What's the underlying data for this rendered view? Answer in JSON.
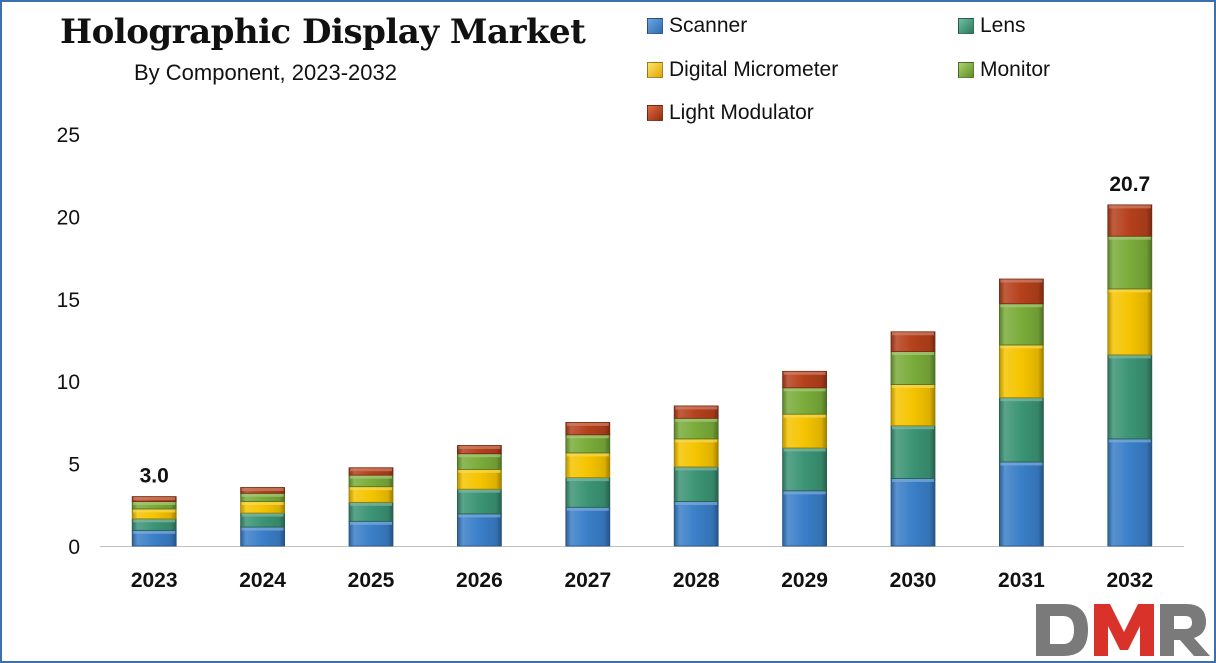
{
  "title": "Holographic Display Market",
  "subtitle": "By Component, 2023-2032",
  "legend": [
    {
      "label": "Scanner",
      "color": "#3a7fc8"
    },
    {
      "label": "Lens",
      "color": "#3c9475"
    },
    {
      "label": "Digital Micrometer",
      "color": "#f5c400"
    },
    {
      "label": "Monitor",
      "color": "#7aac3a"
    },
    {
      "label": "Light Modulator",
      "color": "#b5401c"
    }
  ],
  "logo": {
    "text": "DMR",
    "colors": [
      "#7a7a7a",
      "#d8322b",
      "#7a7a7a"
    ]
  },
  "chart_data": {
    "type": "bar",
    "stacked": true,
    "categories": [
      "2023",
      "2024",
      "2025",
      "2026",
      "2027",
      "2028",
      "2029",
      "2030",
      "2031",
      "2032"
    ],
    "series": [
      {
        "name": "Scanner",
        "color": "#3a7fc8",
        "values": [
          0.95,
          1.15,
          1.5,
          1.95,
          2.35,
          2.7,
          3.35,
          4.1,
          5.1,
          6.5
        ]
      },
      {
        "name": "Lens",
        "color": "#3c9475",
        "values": [
          0.7,
          0.85,
          1.15,
          1.5,
          1.8,
          2.1,
          2.6,
          3.2,
          3.9,
          5.1
        ]
      },
      {
        "name": "Digital Micrometer",
        "color": "#f5c400",
        "values": [
          0.6,
          0.7,
          0.95,
          1.2,
          1.5,
          1.7,
          2.05,
          2.5,
          3.2,
          4.0
        ]
      },
      {
        "name": "Monitor",
        "color": "#7aac3a",
        "values": [
          0.45,
          0.5,
          0.7,
          0.95,
          1.1,
          1.25,
          1.6,
          2.0,
          2.5,
          3.2
        ]
      },
      {
        "name": "Light Modulator",
        "color": "#b5401c",
        "values": [
          0.3,
          0.35,
          0.45,
          0.5,
          0.75,
          0.75,
          1.0,
          1.2,
          1.5,
          1.9
        ]
      }
    ],
    "totals_labeled": [
      {
        "category": "2023",
        "label": "3.0"
      },
      {
        "category": "2032",
        "label": "20.7"
      }
    ],
    "ylim": [
      0,
      25
    ],
    "yticks": [
      "0",
      "5",
      "10",
      "15",
      "20",
      "25"
    ],
    "grid": false,
    "legend_position": "top-right"
  }
}
